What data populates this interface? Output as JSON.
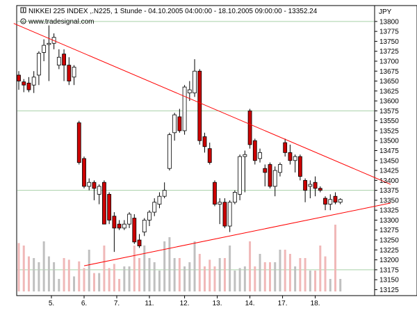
{
  "header": {
    "title": "NIKKEI 225 INDEX ,.N225, 1 Stunde - 04.10.2005 04:00:00 - 18.10.2005 09:00:00 - 13352.24",
    "currency": "JPY",
    "credit": "www.tradesignal.com"
  },
  "colors": {
    "bull_body": "#ffffff",
    "bear_body": "#cc0000",
    "trendline": "#ff0000",
    "volume_up": "#c0c0c0",
    "volume_down": "#f0b8b8",
    "grid": "#a8d0a8"
  },
  "chart_data": {
    "type": "candlestick",
    "title": "NIKKEI 225 INDEX ,.N225, 1 Stunde - 04.10.2005 04:00:00 - 18.10.2005 09:00:00 - 13352.24",
    "ylim": [
      13110,
      13840
    ],
    "y_ticks": [
      13125,
      13150,
      13175,
      13200,
      13225,
      13250,
      13275,
      13300,
      13325,
      13350,
      13375,
      13400,
      13425,
      13450,
      13475,
      13500,
      13525,
      13550,
      13575,
      13600,
      13625,
      13650,
      13675,
      13700,
      13725,
      13750,
      13775,
      13800
    ],
    "x_labels": [
      {
        "label": "5.",
        "index": 6.5
      },
      {
        "label": "6.",
        "index": 13
      },
      {
        "label": "7.",
        "index": 19.5
      },
      {
        "label": "11.",
        "index": 26
      },
      {
        "label": "12.",
        "index": 33
      },
      {
        "label": "13.",
        "index": 39.5
      },
      {
        "label": "14.",
        "index": 46
      },
      {
        "label": "17.",
        "index": 52.5
      },
      {
        "label": "18.",
        "index": 59
      }
    ],
    "candles": [
      [
        13665,
        13675,
        13628,
        13650
      ],
      [
        13648,
        13655,
        13622,
        13640
      ],
      [
        13645,
        13660,
        13622,
        13628
      ],
      [
        13640,
        13675,
        13620,
        13660
      ],
      [
        13665,
        13725,
        13640,
        13720
      ],
      [
        13722,
        13755,
        13700,
        13740
      ],
      [
        13742,
        13790,
        13650,
        13745
      ],
      [
        13745,
        13770,
        13730,
        13760
      ],
      [
        13690,
        13730,
        13680,
        13710
      ],
      [
        13718,
        13730,
        13650,
        13690
      ],
      [
        13690,
        13710,
        13640,
        13650
      ],
      [
        13660,
        13690,
        13640,
        13685
      ],
      [
        13545,
        13550,
        13440,
        13445
      ],
      [
        13455,
        13460,
        13380,
        13385
      ],
      [
        13385,
        13405,
        13375,
        13395
      ],
      [
        13395,
        13400,
        13350,
        13380
      ],
      [
        13365,
        13390,
        13340,
        13385
      ],
      [
        13395,
        13400,
        13290,
        13290
      ],
      [
        13365,
        13370,
        13290,
        13300
      ],
      [
        13310,
        13320,
        13220,
        13280
      ],
      [
        13290,
        13300,
        13275,
        13280
      ],
      [
        13280,
        13300,
        13275,
        13290
      ],
      [
        13290,
        13320,
        13280,
        13315
      ],
      [
        13305,
        13315,
        13240,
        13245
      ],
      [
        13250,
        13265,
        13230,
        13235
      ],
      [
        13270,
        13305,
        13260,
        13300
      ],
      [
        13300,
        13325,
        13285,
        13320
      ],
      [
        13320,
        13355,
        13310,
        13345
      ],
      [
        13340,
        13370,
        13330,
        13360
      ],
      [
        13360,
        13395,
        13355,
        13375
      ],
      [
        13430,
        13520,
        13425,
        13515
      ],
      [
        13520,
        13570,
        13500,
        13565
      ],
      [
        13560,
        13580,
        13520,
        13525
      ],
      [
        13525,
        13640,
        13515,
        13635
      ],
      [
        13620,
        13650,
        13600,
        13628
      ],
      [
        13620,
        13705,
        13610,
        13675
      ],
      [
        13675,
        13680,
        13490,
        13500
      ],
      [
        13510,
        13520,
        13470,
        13485
      ],
      [
        13480,
        13495,
        13440,
        13445
      ],
      [
        13395,
        13400,
        13335,
        13340
      ],
      [
        13340,
        13355,
        13290,
        13345
      ],
      [
        13345,
        13355,
        13280,
        13285
      ],
      [
        13285,
        13350,
        13270,
        13345
      ],
      [
        13345,
        13375,
        13340,
        13370
      ],
      [
        13365,
        13465,
        13350,
        13460
      ],
      [
        13460,
        13475,
        13370,
        13465
      ],
      [
        13575,
        13580,
        13480,
        13490
      ],
      [
        13500,
        13505,
        13440,
        13450
      ],
      [
        13455,
        13480,
        13445,
        13470
      ],
      [
        13430,
        13440,
        13385,
        13420
      ],
      [
        13440,
        13445,
        13380,
        13385
      ],
      [
        13385,
        13435,
        13360,
        13425
      ],
      [
        13420,
        13445,
        13410,
        13440
      ],
      [
        13495,
        13505,
        13460,
        13470
      ],
      [
        13470,
        13490,
        13440,
        13450
      ],
      [
        13450,
        13465,
        13420,
        13460
      ],
      [
        13460,
        13465,
        13400,
        13410
      ],
      [
        13400,
        13405,
        13345,
        13375
      ],
      [
        13385,
        13400,
        13355,
        13390
      ],
      [
        13395,
        13410,
        13360,
        13380
      ],
      [
        13380,
        13385,
        13370,
        13375
      ],
      [
        13355,
        13360,
        13325,
        13340
      ],
      [
        13340,
        13365,
        13325,
        13352
      ],
      [
        13360,
        13370,
        13340,
        13345
      ],
      [
        13345,
        13355,
        13340,
        13352
      ]
    ],
    "volumes": [
      0.58,
      0.55,
      0.42,
      0.4,
      0.35,
      0.6,
      0.42,
      0.35,
      0.15,
      0.4,
      0.38,
      0.18,
      0.36,
      0.28,
      0.5,
      0.22,
      0.22,
      0.55,
      0.28,
      0.33,
      0.15,
      0.3,
      0.3,
      0.55,
      0.4,
      0.55,
      0.4,
      0.35,
      0.25,
      0.6,
      0.65,
      0.4,
      0.4,
      0.3,
      0.35,
      0.6,
      0.45,
      0.3,
      0.38,
      0.3,
      0.4,
      0.4,
      0.55,
      0.25,
      0.28,
      0.3,
      0.6,
      0.3,
      0.45,
      0.35,
      0.35,
      0.35,
      0.5,
      0.5,
      0.45,
      0.3,
      0.4,
      0.4,
      0.25,
      0.25,
      0.55,
      0.42,
      0.15,
      0.8,
      0.15
    ],
    "trendlines": [
      {
        "from_index": -1,
        "from_value": 13795,
        "to_index": 74,
        "to_value": 13390
      },
      {
        "from_index": 13,
        "from_value": 13185,
        "to_index": 74,
        "to_value": 13343
      }
    ]
  }
}
